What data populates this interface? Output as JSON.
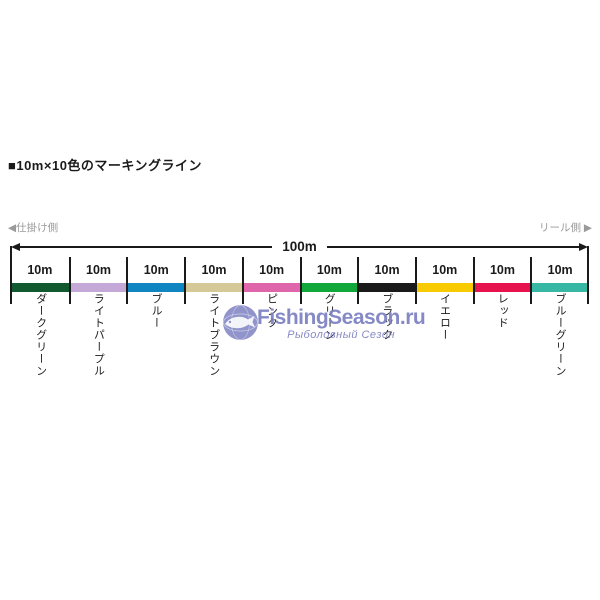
{
  "title": "■10m×10色のマーキングライン",
  "diagram": {
    "left_side_label": "◀仕掛け側",
    "right_side_label": "リール側 ▶",
    "total_length_label": "100m",
    "tick_color": "#1a1a1a",
    "side_label_color": "#9a9a9a",
    "segments": [
      {
        "length": "10m",
        "color_name": "ダークグリーン",
        "color": "#115a30"
      },
      {
        "length": "10m",
        "color_name": "ライトパープル",
        "color": "#c3a8d8"
      },
      {
        "length": "10m",
        "color_name": "ブルー",
        "color": "#0f86c2"
      },
      {
        "length": "10m",
        "color_name": "ライトブラウン",
        "color": "#d6c998"
      },
      {
        "length": "10m",
        "color_name": "ピンク",
        "color": "#e066ab"
      },
      {
        "length": "10m",
        "color_name": "グリーン",
        "color": "#12a73b"
      },
      {
        "length": "10m",
        "color_name": "ブラック",
        "color": "#1a1a1a"
      },
      {
        "length": "10m",
        "color_name": "イエロー",
        "color": "#f8cb00"
      },
      {
        "length": "10m",
        "color_name": "レッド",
        "color": "#e6134e"
      },
      {
        "length": "10m",
        "color_name": "ブルーグリーン",
        "color": "#36b8a4"
      }
    ]
  },
  "watermark": {
    "main_text": "FishingSeason.ru",
    "sub_text": "Рыболовный Сезон",
    "color": "#7b80c1",
    "globe_color": "#878bc7"
  }
}
